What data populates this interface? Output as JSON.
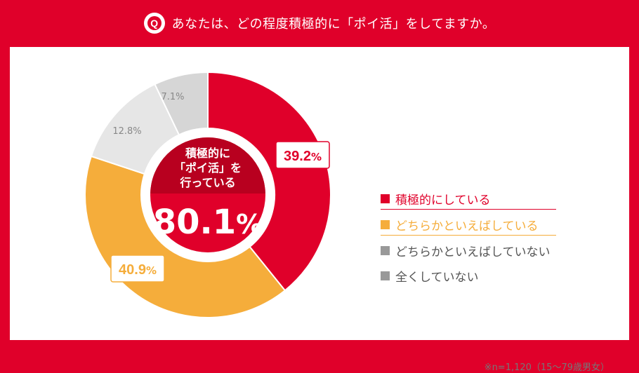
{
  "header": {
    "icon_letter": "Q",
    "question": "あなたは、どの程度積極的に「ポイ活」をしてますか。"
  },
  "colors": {
    "brand_red": "#e0002a",
    "orange": "#f5ad3b",
    "light_gray": "#e6e6e6",
    "mid_gray": "#d6d6d6",
    "dark_red": "#b8001f"
  },
  "center": {
    "line1": "積極的に",
    "line2": "「ポイ活」を",
    "line3": "行っている",
    "value": "80.1",
    "unit": "%"
  },
  "chart_data": {
    "type": "pie",
    "categories": [
      "積極的にしている",
      "どちらかといえばしている",
      "どちらかといえばしていない",
      "全くしていない"
    ],
    "values": [
      39.2,
      40.9,
      12.8,
      7.1
    ],
    "colors": [
      "#e0002a",
      "#f5ad3b",
      "#e6e6e6",
      "#d6d6d6"
    ],
    "labels": [
      {
        "number": "39.2",
        "unit": "%"
      },
      {
        "number": "40.9",
        "unit": "%"
      },
      {
        "text": "12.8%"
      },
      {
        "text": "7.1%"
      }
    ],
    "legend_colors": [
      "#e0002a",
      "#f5ad3b",
      "#999999",
      "#999999"
    ],
    "legend_text_colors": [
      "#e0002a",
      "#f5ad3b",
      "#555555",
      "#555555"
    ],
    "legend_position": "right"
  },
  "legend": [
    {
      "label": "積極的にしている"
    },
    {
      "label": "どちらかといえばしている"
    },
    {
      "label": "どちらかといえばしていない"
    },
    {
      "label": "全くしていない"
    }
  ],
  "footnote": "※n=1,120（15～79歳男女）"
}
